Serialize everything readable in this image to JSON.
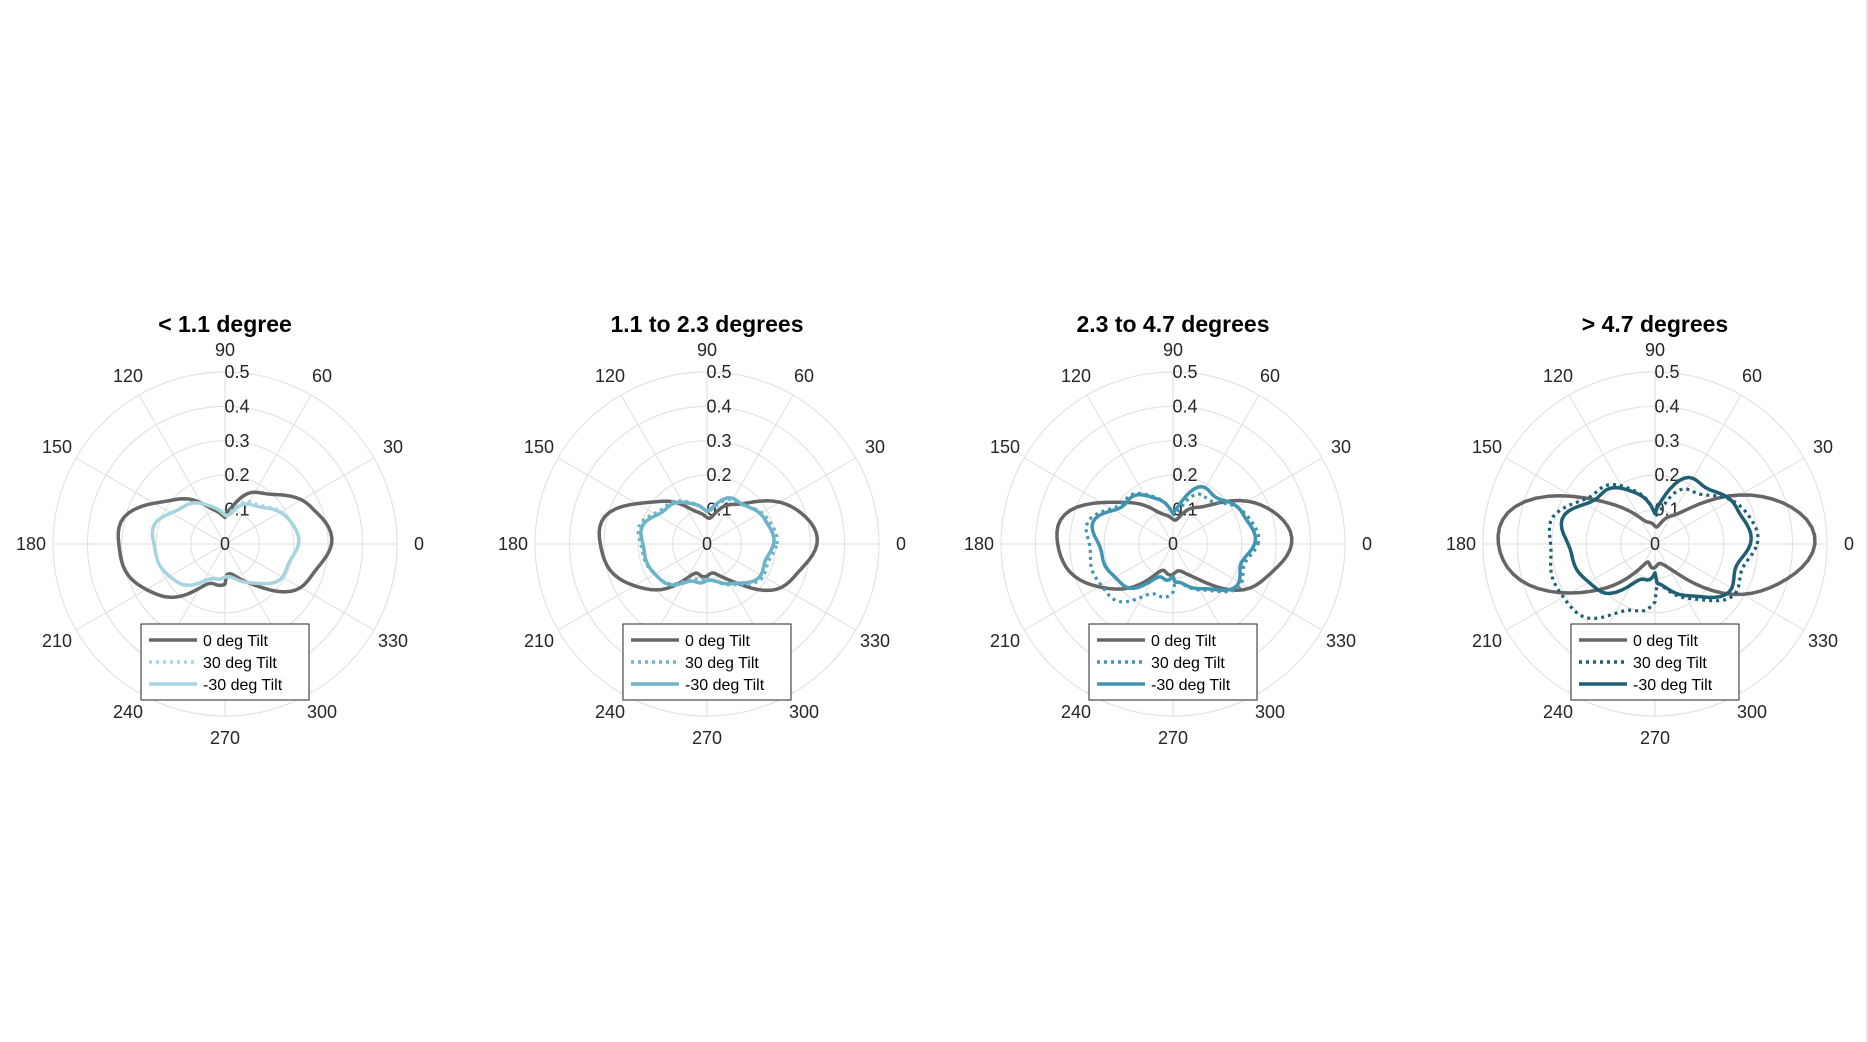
{
  "chart_data": [
    {
      "type": "polar-line",
      "title": "< 1.1 degree",
      "rlim": [
        0,
        0.5
      ],
      "r_ticks": [
        "0",
        "0.1",
        "0.2",
        "0.3",
        "0.4",
        "0.5"
      ],
      "theta_ticks": [
        "0",
        "30",
        "60",
        "90",
        "120",
        "150",
        "180",
        "210",
        "240",
        "270",
        "300",
        "330"
      ],
      "legend_location": "bottom-center",
      "series": [
        {
          "name": "0 deg Tilt",
          "color": "#666666",
          "style": "solid",
          "shape": {
            "base": 0.085,
            "h2": 0.22,
            "pow": 2.2,
            "lobeR": 0.07,
            "lobeL": 0.025,
            "noise": 0.008
          }
        },
        {
          "name": "30 deg Tilt",
          "color": "#a6d5e0",
          "style": "dotted",
          "shape": {
            "base": 0.09,
            "h2": 0.12,
            "pow": 1.5,
            "lobeR": 0.005,
            "lobeL": 0.0,
            "noise": 0.006
          }
        },
        {
          "name": "-30 deg Tilt",
          "color": "#a6d5e0",
          "style": "solid",
          "shape": {
            "base": 0.09,
            "h2": 0.12,
            "pow": 1.5,
            "lobeR": -0.01,
            "lobeL": 0.0,
            "noise": 0.006
          }
        }
      ]
    },
    {
      "type": "polar-line",
      "title": "1.1 to 2.3 degrees",
      "rlim": [
        0,
        0.5
      ],
      "r_ticks": [
        "0",
        "0.1",
        "0.2",
        "0.3",
        "0.4",
        "0.5"
      ],
      "theta_ticks": [
        "0",
        "30",
        "60",
        "90",
        "120",
        "150",
        "180",
        "210",
        "240",
        "270",
        "300",
        "330"
      ],
      "legend_location": "bottom-center",
      "series": [
        {
          "name": "0 deg Tilt",
          "color": "#666666",
          "style": "solid",
          "shape": {
            "base": 0.085,
            "h2": 0.23,
            "pow": 2.6,
            "lobeR": 0.0,
            "lobeL": 0.0,
            "noise": 0.008
          }
        },
        {
          "name": "30 deg Tilt",
          "color": "#6bb4c9",
          "style": "dotted",
          "shape": {
            "base": 0.1,
            "h2": 0.1,
            "pow": 1.3,
            "lobeR": 0.0,
            "lobeL": -0.01,
            "noise": 0.006
          }
        },
        {
          "name": "-30 deg Tilt",
          "color": "#6bb4c9",
          "style": "solid",
          "shape": {
            "base": 0.1,
            "h2": 0.09,
            "pow": 1.3,
            "lobeR": 0.02,
            "lobeL": 0.0,
            "noise": 0.006
          }
        }
      ]
    },
    {
      "type": "polar-line",
      "title": "2.3 to 4.7 degrees",
      "rlim": [
        0,
        0.5
      ],
      "r_ticks": [
        "0",
        "0.1",
        "0.2",
        "0.3",
        "0.4",
        "0.5"
      ],
      "theta_ticks": [
        "0",
        "30",
        "60",
        "90",
        "120",
        "150",
        "180",
        "210",
        "240",
        "270",
        "300",
        "330"
      ],
      "legend_location": "bottom-center",
      "series": [
        {
          "name": "0 deg Tilt",
          "color": "#666666",
          "style": "solid",
          "shape": {
            "base": 0.08,
            "h2": 0.26,
            "pow": 3.0,
            "lobeR": 0.0,
            "lobeL": 0.0,
            "noise": 0.008
          }
        },
        {
          "name": "30 deg Tilt",
          "color": "#3f95b2",
          "style": "dotted",
          "shape": {
            "base": 0.1,
            "h2": 0.14,
            "pow": 1.2,
            "lobeR": -0.02,
            "lobeL": 0.03,
            "noise": 0.012
          }
        },
        {
          "name": "-30 deg Tilt",
          "color": "#3f95b2",
          "style": "solid",
          "shape": {
            "base": 0.1,
            "h2": 0.13,
            "pow": 1.2,
            "lobeR": 0.04,
            "lobeL": -0.02,
            "noise": 0.012
          }
        }
      ]
    },
    {
      "type": "polar-line",
      "title": "> 4.7 degrees",
      "rlim": [
        0,
        0.5
      ],
      "r_ticks": [
        "0",
        "0.1",
        "0.2",
        "0.3",
        "0.4",
        "0.5"
      ],
      "theta_ticks": [
        "0",
        "30",
        "60",
        "90",
        "120",
        "150",
        "180",
        "210",
        "240",
        "270",
        "300",
        "330"
      ],
      "legend_location": "bottom-center",
      "series": [
        {
          "name": "0 deg Tilt",
          "color": "#666666",
          "style": "solid",
          "shape": {
            "base": 0.06,
            "h2": 0.4,
            "pow": 4.0,
            "lobeR": 0.0,
            "lobeL": 0.0,
            "noise": 0.008
          }
        },
        {
          "name": "30 deg Tilt",
          "color": "#1f5f75",
          "style": "dotted",
          "shape": {
            "base": 0.1,
            "h2": 0.19,
            "pow": 1.1,
            "lobeR": -0.04,
            "lobeL": 0.06,
            "noise": 0.012
          }
        },
        {
          "name": "-30 deg Tilt",
          "color": "#1f5f75",
          "style": "solid",
          "shape": {
            "base": 0.1,
            "h2": 0.17,
            "pow": 1.1,
            "lobeR": 0.06,
            "lobeL": -0.03,
            "noise": 0.012
          }
        }
      ]
    }
  ]
}
